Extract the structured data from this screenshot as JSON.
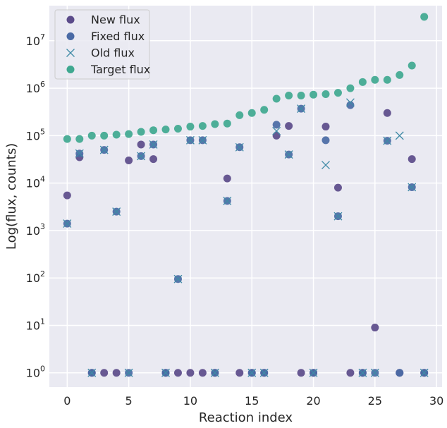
{
  "chart_data": {
    "type": "scatter",
    "xlabel": "Reaction index",
    "ylabel": "Log(flux, counts)",
    "xlim": [
      -1.45,
      30.45
    ],
    "ylim": [
      0.5,
      55000000
    ],
    "yscale": "log",
    "xticks": [
      0,
      5,
      10,
      15,
      20,
      25,
      30
    ],
    "yticks": [
      {
        "value": 1,
        "base": "10",
        "exp": "0"
      },
      {
        "value": 10,
        "base": "10",
        "exp": "1"
      },
      {
        "value": 100,
        "base": "10",
        "exp": "2"
      },
      {
        "value": 1000,
        "base": "10",
        "exp": "3"
      },
      {
        "value": 10000,
        "base": "10",
        "exp": "4"
      },
      {
        "value": 100000,
        "base": "10",
        "exp": "5"
      },
      {
        "value": 1000000,
        "base": "10",
        "exp": "6"
      },
      {
        "value": 10000000,
        "base": "10",
        "exp": "7"
      }
    ],
    "grid": true,
    "legend_position": "top-left",
    "colors": {
      "background": "#eaeaf2",
      "grid": "#ffffff",
      "new": "#5b4b8a",
      "fixed": "#4a6aa5",
      "old": "#3f8aa6",
      "target": "#3fa890"
    },
    "x": [
      0,
      1,
      2,
      3,
      4,
      5,
      6,
      7,
      8,
      9,
      10,
      11,
      12,
      13,
      14,
      15,
      16,
      17,
      18,
      19,
      20,
      21,
      22,
      23,
      24,
      25,
      26,
      27,
      28,
      29
    ],
    "series": [
      {
        "name": "New flux",
        "marker": "circle",
        "color_key": "new",
        "values": [
          5500,
          35000,
          1,
          1,
          1,
          30000,
          65000,
          32000,
          1,
          1,
          1,
          1,
          1,
          12500,
          1,
          1,
          1,
          100000,
          160000,
          1,
          1,
          155000,
          8000,
          1,
          1,
          9,
          300000,
          1,
          32000,
          1
        ]
      },
      {
        "name": "Fixed flux",
        "marker": "circle",
        "color_key": "fixed",
        "values": [
          1400,
          42000,
          1,
          50000,
          2500,
          1,
          37000,
          65000,
          1,
          95,
          80000,
          80000,
          1,
          4200,
          57000,
          1,
          1,
          170000,
          40000,
          370000,
          1,
          80000,
          2000,
          440000,
          1,
          1,
          78000,
          1,
          8200,
          1
        ]
      },
      {
        "name": "Old flux",
        "marker": "x",
        "color_key": "old",
        "values": [
          1400,
          42000,
          1,
          50000,
          2500,
          1,
          37000,
          65000,
          1,
          95,
          80000,
          80000,
          1,
          4200,
          57000,
          1,
          1,
          125000,
          40000,
          370000,
          1,
          24000,
          2000,
          500000,
          1,
          1,
          78000,
          100000,
          8200,
          1
        ]
      },
      {
        "name": "Target flux",
        "marker": "circle",
        "color_key": "target",
        "values": [
          85000,
          85000,
          100000,
          100000,
          105000,
          108000,
          120000,
          130000,
          135000,
          140000,
          155000,
          160000,
          175000,
          180000,
          270000,
          300000,
          350000,
          600000,
          700000,
          700000,
          730000,
          750000,
          800000,
          1000000,
          1350000,
          1500000,
          1500000,
          1900000,
          3000000,
          32000000
        ]
      }
    ]
  }
}
